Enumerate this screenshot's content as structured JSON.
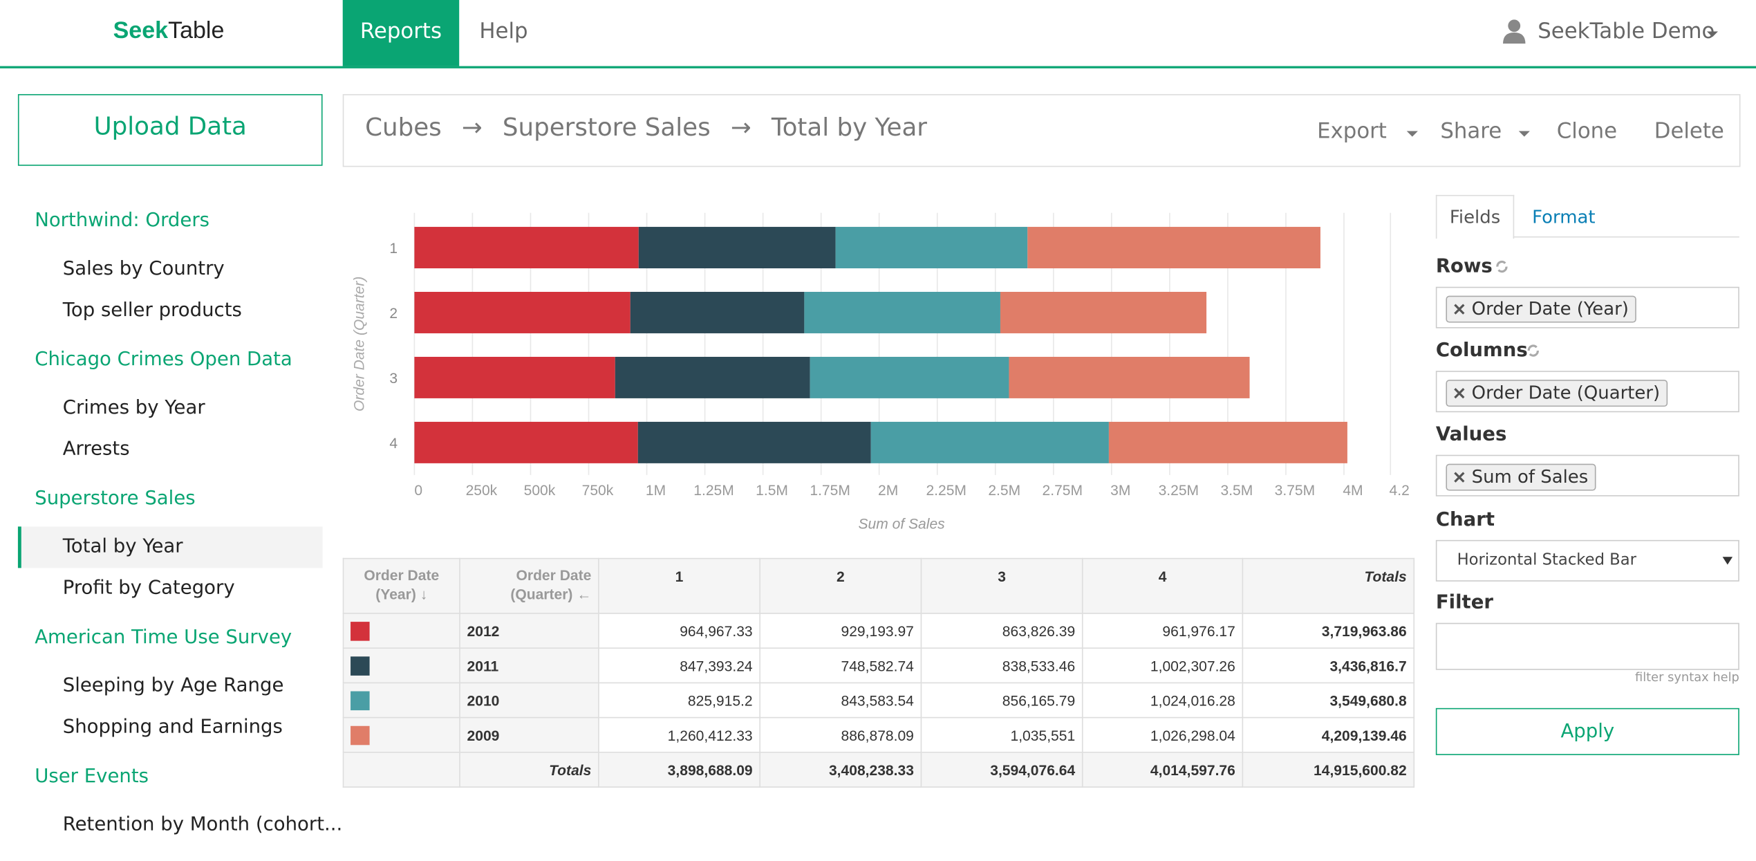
{
  "header": {
    "logo_part1": "Seek",
    "logo_part2": "Table",
    "tabs": [
      "Reports",
      "Help"
    ],
    "user": "SeekTable Demo"
  },
  "sidebar": {
    "upload": "Upload Data",
    "groups": [
      {
        "title": "Northwind: Orders",
        "items": [
          "Sales by Country",
          "Top seller products"
        ]
      },
      {
        "title": "Chicago Crimes Open Data",
        "items": [
          "Crimes by Year",
          "Arrests"
        ]
      },
      {
        "title": "Superstore Sales",
        "items": [
          "Total by Year",
          "Profit by Category"
        ]
      },
      {
        "title": "American Time Use Survey",
        "items": [
          "Sleeping by Age Range",
          "Shopping and Earnings"
        ]
      },
      {
        "title": "User Events",
        "items": [
          "Retention by Month (cohort..."
        ]
      }
    ]
  },
  "breadcrumb": {
    "items": [
      "Cubes",
      "Superstore Sales",
      "Total by Year"
    ],
    "separator": "→"
  },
  "actions": [
    "Export",
    "Share",
    "Clone",
    "Delete"
  ],
  "chart_data": {
    "type": "bar",
    "orientation": "horizontal",
    "stacked": true,
    "x_label": "Sum of Sales",
    "y_label": "Order Date (Quarter)",
    "categories": [
      "1",
      "2",
      "3",
      "4"
    ],
    "series": [
      {
        "name": "2012",
        "color": "#d3323b",
        "values": [
          964967.33,
          929193.97,
          863826.39,
          961976.17
        ]
      },
      {
        "name": "2011",
        "color": "#2c4956",
        "values": [
          847393.24,
          748582.74,
          838533.46,
          1002307.26
        ]
      },
      {
        "name": "2010",
        "color": "#4a9ea5",
        "values": [
          825915.2,
          843583.54,
          856165.79,
          1024016.28
        ]
      },
      {
        "name": "2009",
        "color": "#e07d68",
        "values": [
          1260412.33,
          886878.09,
          1035551,
          1026298.04
        ]
      }
    ],
    "xlim": [
      0,
      4200000
    ],
    "xticks": [
      0,
      {
        "value": 250000,
        "label": "250k"
      },
      {
        "value": 500000,
        "label": "500k"
      },
      {
        "value": 750000,
        "label": "750k"
      },
      {
        "value": 1000000,
        "label": "1M"
      },
      {
        "value": 1250000,
        "label": "1.25M"
      },
      {
        "value": 1500000,
        "label": "1.5M"
      },
      {
        "value": 1750000,
        "label": "1.75M"
      },
      {
        "value": 2000000,
        "label": "2M"
      },
      {
        "value": 2250000,
        "label": "2.25M"
      },
      {
        "value": 2500000,
        "label": "2.5M"
      },
      {
        "value": 2750000,
        "label": "2.75M"
      },
      {
        "value": 3000000,
        "label": "3M"
      },
      {
        "value": 3250000,
        "label": "3.25M"
      },
      {
        "value": 3500000,
        "label": "3.5M"
      },
      {
        "value": 3750000,
        "label": "3.75M"
      },
      {
        "value": 4000000,
        "label": "4M"
      },
      {
        "value": 4200000,
        "label": "4.2"
      }
    ],
    "grid": true
  },
  "table": {
    "row_header": "Order Date (Year) ↓",
    "col_header": "Order Date (Quarter) ←",
    "totals_header": "Totals",
    "rows": [
      [
        "964,967.33",
        "929,193.97",
        "863,826.39",
        "961,976.17",
        "3,719,963.86"
      ],
      [
        "847,393.24",
        "748,582.74",
        "838,533.46",
        "1,002,307.26",
        "3,436,816.7"
      ],
      [
        "825,915.2",
        "843,583.54",
        "856,165.79",
        "1,024,016.28",
        "3,549,680.8"
      ],
      [
        "1,260,412.33",
        "886,878.09",
        "1,035,551",
        "1,026,298.04",
        "4,209,139.46"
      ]
    ],
    "totals_label": "Totals",
    "totals": [
      "3,898,688.09",
      "3,408,238.33",
      "3,594,076.64",
      "4,014,597.76",
      "14,915,600.82"
    ]
  },
  "panel": {
    "tabs": [
      "Fields",
      "Format"
    ],
    "rows_label": "Rows",
    "rows_field": "Order Date (Year)",
    "columns_label": "Columns",
    "columns_field": "Order Date (Quarter)",
    "values_label": "Values",
    "values_field": "Sum of Sales",
    "chart_label": "Chart",
    "chart_type": "Horizontal Stacked Bar",
    "filter_label": "Filter",
    "filter_help": "filter syntax help",
    "apply": "Apply"
  }
}
